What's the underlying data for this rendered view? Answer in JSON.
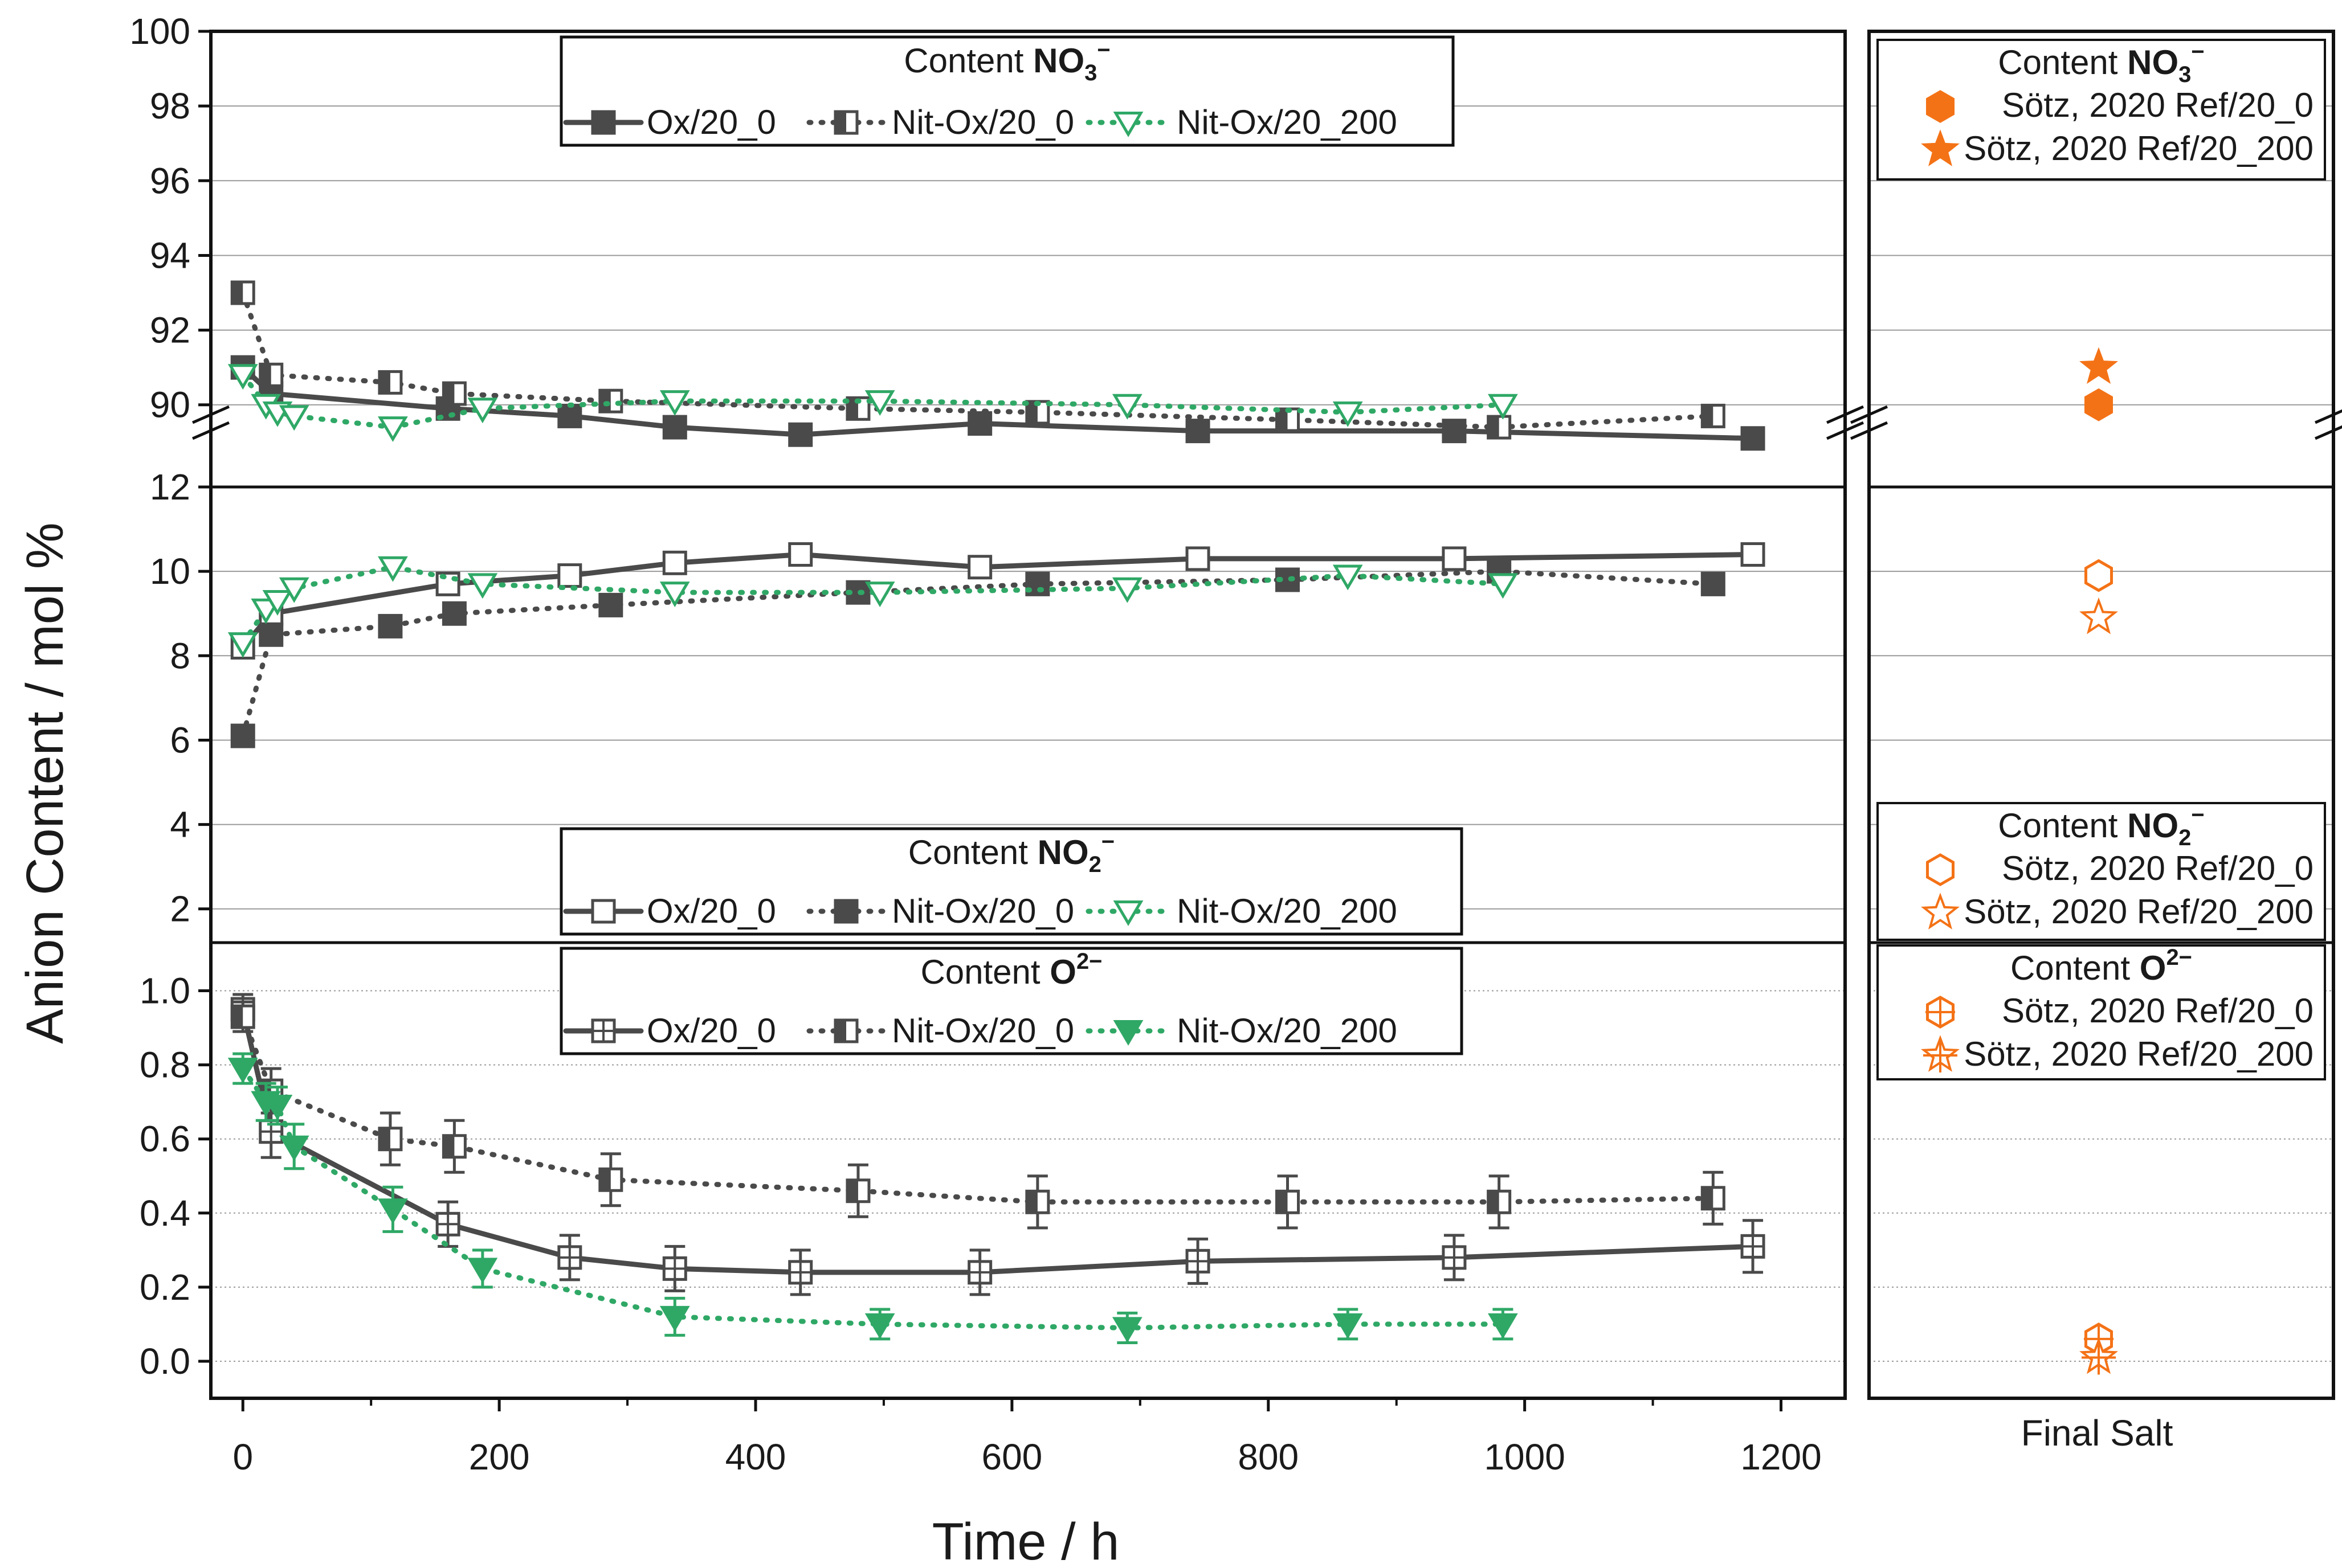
{
  "figure": {
    "ylabel": "Anion Content / mol %",
    "xlabel": "Time / h",
    "right_xlabel": "Final Salt",
    "colors": {
      "ox": "#4a4a4a",
      "nit": "#4a4a4a",
      "green": "#2fa866",
      "orange": "#f47216"
    }
  },
  "legends": {
    "no3": {
      "title": "Content",
      "species": "NO",
      "sub": "3",
      "sup": "−",
      "items": [
        "Ox/20_0",
        "Nit-Ox/20_0",
        "Nit-Ox/20_200"
      ]
    },
    "no2": {
      "title": "Content",
      "species": "NO",
      "sub": "2",
      "sup": "−",
      "items": [
        "Ox/20_0",
        "Nit-Ox/20_0",
        "Nit-Ox/20_200"
      ]
    },
    "o2": {
      "title": "Content",
      "species": "O",
      "sub": "",
      "sup": "2−",
      "items": [
        "Ox/20_0",
        "Nit-Ox/20_0",
        "Nit-Ox/20_200"
      ]
    },
    "ref_no3": {
      "title": "Content",
      "species": "NO",
      "sub": "3",
      "sup": "−",
      "items": [
        "Sötz, 2020 Ref/20_0",
        "Sötz, 2020 Ref/20_200"
      ]
    },
    "ref_no2": {
      "title": "Content",
      "species": "NO",
      "sub": "2",
      "sup": "−",
      "items": [
        "Sötz, 2020 Ref/20_0",
        "Sötz, 2020 Ref/20_200"
      ]
    },
    "ref_o2": {
      "title": "Content",
      "species": "O",
      "sub": "",
      "sup": "2−",
      "items": [
        "Sötz, 2020 Ref/20_0",
        "Sötz, 2020 Ref/20_200"
      ]
    }
  },
  "chart_data": [
    {
      "type": "line",
      "panel": "top",
      "xlim": [
        -25,
        1250
      ],
      "ylim": [
        87.8,
        100
      ],
      "yticks": [
        "90",
        "92",
        "94",
        "96",
        "98",
        "100"
      ],
      "xticks": [
        "0",
        "200",
        "400",
        "600",
        "800",
        "1000",
        "1200"
      ],
      "series": [
        {
          "name": "Ox/20_0",
          "x": [
            0,
            22,
            160,
            255,
            337,
            435,
            575,
            745,
            945,
            1178
          ],
          "y": [
            91.0,
            90.3,
            89.9,
            89.7,
            89.4,
            89.2,
            89.5,
            89.3,
            89.3,
            89.1
          ]
        },
        {
          "name": "Nit-Ox/20_0",
          "x": [
            0,
            22,
            115,
            165,
            287,
            480,
            620,
            815,
            980,
            1147
          ],
          "y": [
            93.0,
            90.8,
            90.6,
            90.3,
            90.1,
            89.9,
            89.8,
            89.6,
            89.4,
            89.7
          ]
        },
        {
          "name": "Nit-Ox/20_200",
          "x": [
            0,
            18,
            27,
            40,
            117,
            187,
            337,
            497,
            690,
            862,
            983
          ],
          "y": [
            90.8,
            90.0,
            89.8,
            89.7,
            89.4,
            89.9,
            90.1,
            90.1,
            90.0,
            89.8,
            90.0
          ]
        }
      ],
      "reference": [
        {
          "name": "Sötz, 2020 Ref/20_0",
          "y": 90.0
        },
        {
          "name": "Sötz, 2020 Ref/20_200",
          "y": 91.0
        }
      ]
    },
    {
      "type": "line",
      "panel": "middle",
      "xlim": [
        -25,
        1250
      ],
      "ylim": [
        1.2,
        12
      ],
      "yticks": [
        "2",
        "4",
        "6",
        "8",
        "10",
        "12"
      ],
      "series": [
        {
          "name": "Ox/20_0",
          "x": [
            0,
            22,
            160,
            255,
            337,
            435,
            575,
            745,
            945,
            1178
          ],
          "y": [
            8.2,
            9.0,
            9.7,
            9.9,
            10.2,
            10.4,
            10.1,
            10.3,
            10.3,
            10.4
          ]
        },
        {
          "name": "Nit-Ox/20_0",
          "x": [
            0,
            22,
            115,
            165,
            287,
            480,
            620,
            815,
            980,
            1147
          ],
          "y": [
            6.1,
            8.5,
            8.7,
            9.0,
            9.2,
            9.5,
            9.7,
            9.8,
            10.0,
            9.7
          ]
        },
        {
          "name": "Nit-Ox/20_200",
          "x": [
            0,
            18,
            27,
            40,
            117,
            187,
            337,
            497,
            690,
            862,
            983
          ],
          "y": [
            8.3,
            9.1,
            9.3,
            9.6,
            10.1,
            9.7,
            9.5,
            9.5,
            9.6,
            9.9,
            9.7
          ]
        }
      ],
      "reference": [
        {
          "name": "Sötz, 2020 Ref/20_0",
          "y": 9.9
        },
        {
          "name": "Sötz, 2020 Ref/20_200",
          "y": 8.9
        }
      ]
    },
    {
      "type": "line",
      "panel": "bottom",
      "xlim": [
        -25,
        1250
      ],
      "ylim": [
        -0.1,
        1.13
      ],
      "yticks": [
        "0.0",
        "0.2",
        "0.4",
        "0.6",
        "0.8",
        "1.0"
      ],
      "series": [
        {
          "name": "Ox/20_0",
          "x": [
            0,
            22,
            160,
            255,
            337,
            435,
            575,
            745,
            945,
            1178
          ],
          "y": [
            0.95,
            0.62,
            0.37,
            0.28,
            0.25,
            0.24,
            0.24,
            0.27,
            0.28,
            0.31
          ],
          "err": [
            0.04,
            0.07,
            0.06,
            0.06,
            0.06,
            0.06,
            0.06,
            0.06,
            0.06,
            0.07
          ]
        },
        {
          "name": "Nit-Ox/20_0",
          "x": [
            0,
            22,
            115,
            165,
            287,
            480,
            620,
            815,
            980,
            1147
          ],
          "y": [
            0.93,
            0.73,
            0.6,
            0.58,
            0.49,
            0.46,
            0.43,
            0.43,
            0.43,
            0.44
          ],
          "err": [
            0.04,
            0.06,
            0.07,
            0.07,
            0.07,
            0.07,
            0.07,
            0.07,
            0.07,
            0.07
          ]
        },
        {
          "name": "Nit-Ox/20_200",
          "x": [
            0,
            18,
            27,
            40,
            117,
            187,
            337,
            497,
            690,
            862,
            983
          ],
          "y": [
            0.79,
            0.7,
            0.69,
            0.58,
            0.41,
            0.25,
            0.12,
            0.1,
            0.09,
            0.1,
            0.1
          ],
          "err": [
            0.04,
            0.05,
            0.05,
            0.06,
            0.06,
            0.05,
            0.05,
            0.04,
            0.04,
            0.04,
            0.04
          ]
        }
      ],
      "reference": [
        {
          "name": "Sötz, 2020 Ref/20_0",
          "y": 0.06
        },
        {
          "name": "Sötz, 2020 Ref/20_200",
          "y": 0.01
        }
      ]
    }
  ]
}
